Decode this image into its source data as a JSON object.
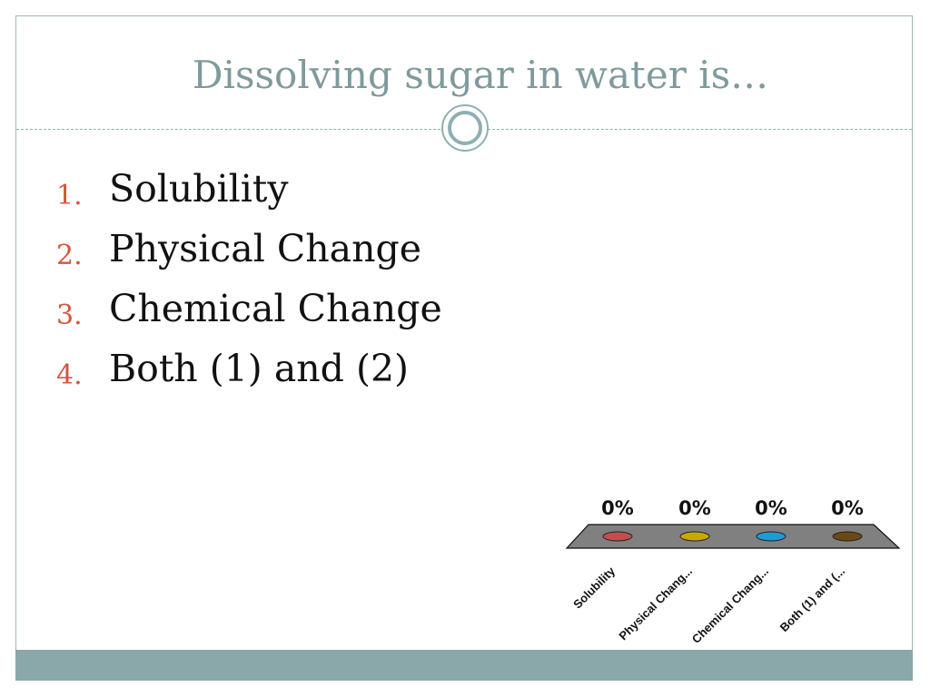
{
  "slide": {
    "title": "Dissolving sugar in water is…",
    "options": [
      {
        "number": "1.",
        "text": "Solubility"
      },
      {
        "number": "2.",
        "text": "Physical Change"
      },
      {
        "number": "3.",
        "text": "Chemical Change"
      },
      {
        "number": "4.",
        "text": "Both (1) and (2)"
      }
    ]
  },
  "colors": {
    "accent_number": "#d3573c",
    "title": "#7f9a9c",
    "footer_bar": "#8aa8a9",
    "chart_platform": "#808080"
  },
  "chart_data": {
    "type": "bar",
    "categories": [
      "Solubility",
      "Physical Chang...",
      "Chemical Chang...",
      "Both (1) and (..."
    ],
    "values": [
      0,
      0,
      0,
      0
    ],
    "data_labels": [
      "0%",
      "0%",
      "0%",
      "0%"
    ],
    "colors": [
      "#c0504d",
      "#c9a800",
      "#1f9ad6",
      "#6b4a12"
    ],
    "title": "",
    "xlabel": "",
    "ylabel": "",
    "ylim": [
      0,
      100
    ],
    "grid": false
  }
}
